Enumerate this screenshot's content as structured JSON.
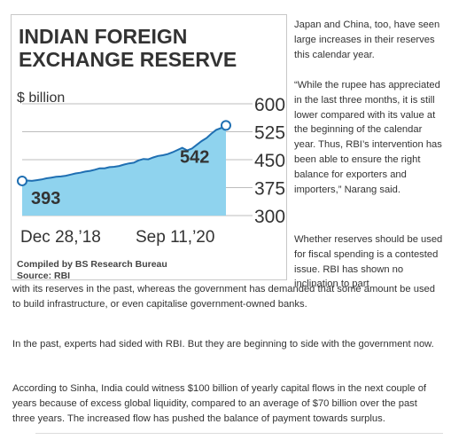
{
  "chart_data": {
    "type": "area",
    "title_lines": [
      "INDIAN FOREIGN",
      "EXCHANGE RESERVE"
    ],
    "ylabel": "$ billion",
    "yticks": [
      600,
      525,
      450,
      375,
      300
    ],
    "ylim": [
      300,
      600
    ],
    "x_labels": [
      "Dec 28,’18",
      "Sep 11,’20"
    ],
    "start": {
      "label": "Dec 28,’18",
      "value": 393
    },
    "end": {
      "label": "Sep 11,’20",
      "value": 542
    },
    "start_label": "393",
    "end_label": "542",
    "values": [
      393,
      394,
      393,
      395,
      397,
      400,
      402,
      404,
      405,
      407,
      410,
      413,
      415,
      418,
      420,
      423,
      427,
      427,
      430,
      431,
      433,
      437,
      440,
      442,
      448,
      452,
      451,
      456,
      460,
      462,
      465,
      470,
      476,
      482,
      475,
      480,
      490,
      500,
      508,
      520,
      530,
      535,
      542
    ],
    "grid": true,
    "area_color": "#8fd3ee",
    "line_color": "#1f6fb2",
    "source_lines": [
      "Compiled by BS Research Bureau",
      "Source: RBI"
    ]
  },
  "article": {
    "right_col_1": "Japan and China, too, have seen large increases in their reserves this calendar year.",
    "right_col_2": "“While the rupee has appreciated in the last three months, it is still lower compared with its value at the beginning of the calendar year. Thus, RBI’s intervention has been able to ensure the right balance for exporters and importers,” Narang said.",
    "right_col_3": "Whether reserves should be used for fiscal spending is a contested issue. RBI has shown no inclination to part",
    "wrap_line": "with its reserves in the past, whereas the government has demanded that some amount be used to build infrastructure, or even capitalise government-owned banks.",
    "p2": "In the past, experts had sided with RBI. But they are beginning to side with the government now.",
    "p3": "According to Sinha, India could witness $100 billion of yearly capital flows in the next couple of years because of excess global liquidity, compared to an average of $70 billion over the past three years. The increased flow has pushed the balance of payment towards surplus."
  }
}
